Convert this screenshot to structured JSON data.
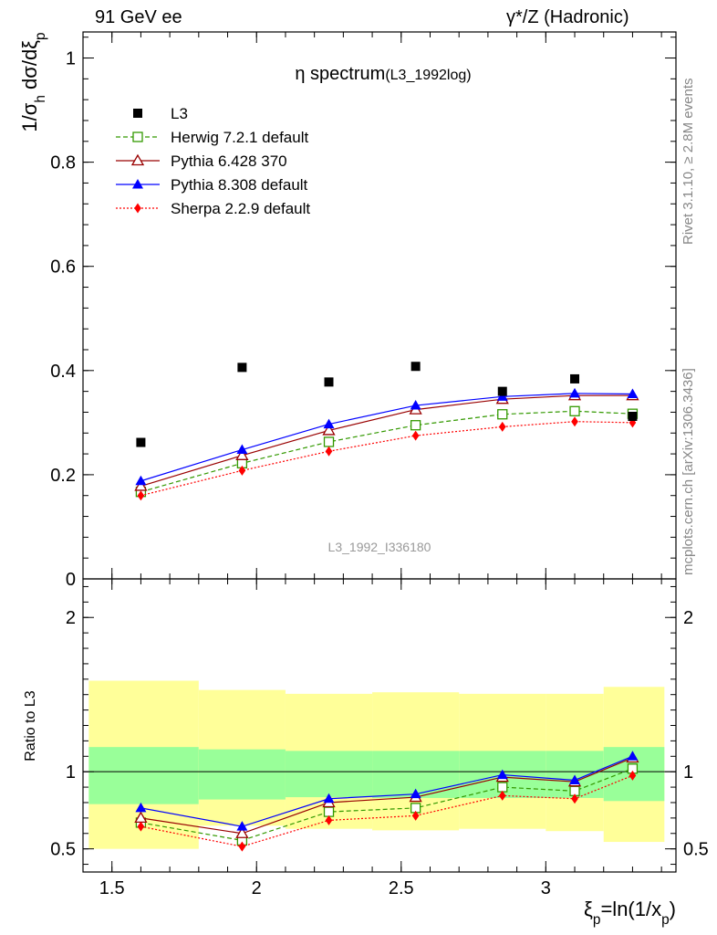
{
  "header": {
    "left": "91 GeV ee",
    "right": "γ*/Z (Hadronic)"
  },
  "side": {
    "rivet": "Rivet 3.1.10, ≥ 2.8M events",
    "mcplots": "mcplots.cern.ch [arXiv:1306.3436]"
  },
  "chart_data": [
    {
      "type": "line",
      "panel": "main",
      "title": "η spectrum",
      "title_suffix": "(L3_1992log)",
      "watermark": "L3_1992_I336180",
      "ylabel": "1/σ_h dσ/dξ_p",
      "ylim": [
        0,
        1.05
      ],
      "yticks": [
        0,
        0.2,
        0.4,
        0.6,
        0.8,
        1
      ],
      "ytick_labels": [
        "0",
        "0.2",
        "0.4",
        "0.6",
        "0.8",
        "1"
      ],
      "xlim": [
        1.4,
        3.45
      ],
      "legend_position": "top-left",
      "data": {
        "name": "L3",
        "x": [
          1.6,
          1.95,
          2.25,
          2.55,
          2.85,
          3.1,
          3.3
        ],
        "values": [
          0.262,
          0.406,
          0.378,
          0.408,
          0.36,
          0.384,
          0.312
        ]
      },
      "series": [
        {
          "name": "Herwig 7.2.1 default",
          "color": "#339900",
          "marker": "open-square",
          "dash": "dashed",
          "x": [
            1.6,
            1.95,
            2.25,
            2.55,
            2.85,
            3.1,
            3.3
          ],
          "values": [
            0.167,
            0.222,
            0.263,
            0.295,
            0.316,
            0.322,
            0.317
          ]
        },
        {
          "name": "Pythia 6.428 370",
          "color": "#990000",
          "marker": "open-triangle",
          "dash": "solid",
          "x": [
            1.6,
            1.95,
            2.25,
            2.55,
            2.85,
            3.1,
            3.3
          ],
          "values": [
            0.178,
            0.237,
            0.285,
            0.325,
            0.345,
            0.352,
            0.352
          ]
        },
        {
          "name": "Pythia 8.308 default",
          "color": "#0000ff",
          "marker": "filled-triangle",
          "dash": "solid",
          "x": [
            1.6,
            1.95,
            2.25,
            2.55,
            2.85,
            3.1,
            3.3
          ],
          "values": [
            0.188,
            0.248,
            0.297,
            0.333,
            0.35,
            0.356,
            0.355
          ]
        },
        {
          "name": "Sherpa 2.2.9 default",
          "color": "#ff0000",
          "marker": "filled-diamond",
          "dash": "dotted",
          "x": [
            1.6,
            1.95,
            2.25,
            2.55,
            2.85,
            3.1,
            3.3
          ],
          "values": [
            0.16,
            0.208,
            0.245,
            0.275,
            0.292,
            0.302,
            0.3
          ]
        }
      ]
    },
    {
      "type": "line",
      "panel": "ratio",
      "ylabel": "Ratio to L3",
      "ylim": [
        0.35,
        2.25
      ],
      "yticks": [
        0.5,
        1,
        2
      ],
      "ytick_labels": [
        "0.5",
        "1",
        "2"
      ],
      "xlim": [
        1.4,
        3.45
      ],
      "xticks": [
        1.5,
        2,
        2.5,
        3
      ],
      "xtick_labels": [
        "1.5",
        "2",
        "2.5",
        "3"
      ],
      "xlabel": "ξ_p=ln(1/x_p)",
      "reference": 1,
      "bands": {
        "colors": {
          "inner": "#99ff99",
          "outer": "#ffff99"
        },
        "bins": [
          {
            "x0": 1.42,
            "x1": 1.8,
            "inner": [
              0.79,
              1.16
            ],
            "outer": [
              0.5,
              1.59
            ]
          },
          {
            "x0": 1.8,
            "x1": 2.1,
            "inner": [
              0.82,
              1.145
            ],
            "outer": [
              0.65,
              1.53
            ]
          },
          {
            "x0": 2.1,
            "x1": 2.4,
            "inner": [
              0.835,
              1.135
            ],
            "outer": [
              0.63,
              1.505
            ]
          },
          {
            "x0": 2.4,
            "x1": 2.7,
            "inner": [
              0.83,
              1.135
            ],
            "outer": [
              0.62,
              1.515
            ]
          },
          {
            "x0": 2.7,
            "x1": 3.0,
            "inner": [
              0.83,
              1.135
            ],
            "outer": [
              0.63,
              1.505
            ]
          },
          {
            "x0": 3.0,
            "x1": 3.2,
            "inner": [
              0.83,
              1.135
            ],
            "outer": [
              0.615,
              1.505
            ]
          },
          {
            "x0": 3.2,
            "x1": 3.41,
            "inner": [
              0.81,
              1.16
            ],
            "outer": [
              0.545,
              1.55
            ]
          }
        ]
      },
      "series": [
        {
          "name": "Herwig 7.2.1 default",
          "color": "#339900",
          "marker": "open-square",
          "dash": "dashed",
          "x": [
            1.6,
            1.95,
            2.25,
            2.55,
            2.85,
            3.1,
            3.3
          ],
          "values": [
            0.67,
            0.555,
            0.74,
            0.765,
            0.9,
            0.875,
            1.02
          ]
        },
        {
          "name": "Pythia 6.428 370",
          "color": "#990000",
          "marker": "open-triangle",
          "dash": "solid",
          "x": [
            1.6,
            1.95,
            2.25,
            2.55,
            2.85,
            3.1,
            3.3
          ],
          "values": [
            0.7,
            0.6,
            0.8,
            0.835,
            0.965,
            0.935,
            1.09
          ]
        },
        {
          "name": "Pythia 8.308 default",
          "color": "#0000ff",
          "marker": "filled-triangle",
          "dash": "solid",
          "x": [
            1.6,
            1.95,
            2.25,
            2.55,
            2.85,
            3.1,
            3.3
          ],
          "values": [
            0.765,
            0.645,
            0.825,
            0.855,
            0.98,
            0.945,
            1.1
          ]
        },
        {
          "name": "Sherpa 2.2.9 default",
          "color": "#ff0000",
          "marker": "filled-diamond",
          "dash": "dotted",
          "x": [
            1.6,
            1.95,
            2.25,
            2.55,
            2.85,
            3.1,
            3.3
          ],
          "values": [
            0.645,
            0.515,
            0.685,
            0.715,
            0.845,
            0.825,
            0.975
          ]
        }
      ]
    }
  ]
}
